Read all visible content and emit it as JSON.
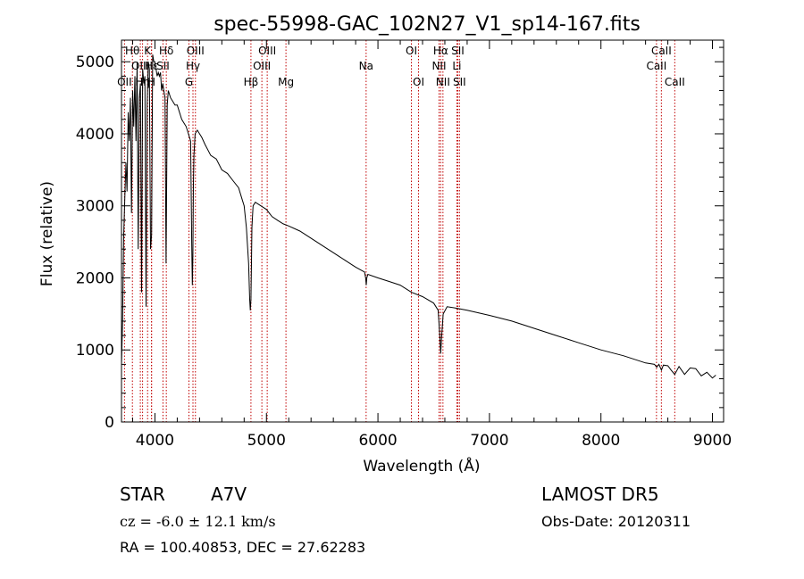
{
  "chart_data": {
    "type": "line",
    "title": "spec-55998-GAC_102N27_V1_sp14-167.fits",
    "xlabel": "Wavelength (Å)",
    "ylabel": "Flux (relative)",
    "xlim": [
      3700,
      9100
    ],
    "ylim": [
      0,
      5300
    ],
    "grid": false,
    "x_ticks": [
      4000,
      5000,
      6000,
      7000,
      8000,
      9000
    ],
    "y_ticks": [
      0,
      1000,
      2000,
      3000,
      4000,
      5000
    ],
    "line_color": "#000000",
    "marker_color": "#c00000",
    "series": [
      {
        "x": [
          3700,
          3710,
          3720,
          3730,
          3740,
          3750,
          3760,
          3770,
          3780,
          3790,
          3800,
          3810,
          3820,
          3830,
          3840,
          3850,
          3860,
          3870,
          3880,
          3890,
          3900,
          3910,
          3920,
          3930,
          3940,
          3950,
          3960,
          3970,
          3980,
          3990,
          4000,
          4010,
          4020,
          4030,
          4040,
          4050,
          4060,
          4070,
          4080,
          4090,
          4100,
          4110,
          4120,
          4140,
          4160,
          4180,
          4200,
          4220,
          4240,
          4260,
          4280,
          4300,
          4320,
          4330,
          4335,
          4340,
          4345,
          4350,
          4360,
          4380,
          4400,
          4420,
          4450,
          4500,
          4550,
          4600,
          4650,
          4700,
          4750,
          4780,
          4800,
          4820,
          4840,
          4850,
          4855,
          4861,
          4866,
          4870,
          4880,
          4900,
          4950,
          5000,
          5050,
          5100,
          5150,
          5200,
          5300,
          5400,
          5500,
          5600,
          5700,
          5800,
          5880,
          5890,
          5895,
          5900,
          5910,
          6000,
          6100,
          6200,
          6300,
          6400,
          6500,
          6540,
          6555,
          6563,
          6570,
          6585,
          6620,
          6700,
          6800,
          7000,
          7200,
          7400,
          7600,
          7800,
          8000,
          8200,
          8400,
          8480,
          8500,
          8520,
          8542,
          8560,
          8600,
          8630,
          8662,
          8700,
          8750,
          8800,
          8850,
          8900,
          8950,
          9000,
          9030
        ],
        "y": [
          800,
          1400,
          2600,
          3100,
          3600,
          3200,
          4300,
          3900,
          4500,
          2900,
          4600,
          4100,
          4800,
          3900,
          5000,
          2400,
          4500,
          4700,
          1800,
          4900,
          4700,
          4800,
          1600,
          4400,
          5000,
          4900,
          2400,
          2600,
          5100,
          5000,
          5000,
          4900,
          4800,
          4850,
          4800,
          4850,
          4600,
          4700,
          4600,
          4500,
          2200,
          4400,
          4600,
          4500,
          4450,
          4400,
          4400,
          4300,
          4200,
          4150,
          4100,
          4000,
          3900,
          2500,
          1900,
          2300,
          3300,
          3700,
          4000,
          4050,
          4000,
          3950,
          3850,
          3700,
          3650,
          3500,
          3450,
          3350,
          3250,
          3100,
          3000,
          2700,
          2200,
          1700,
          1550,
          1700,
          2200,
          2700,
          3000,
          3050,
          3000,
          2950,
          2850,
          2800,
          2750,
          2720,
          2650,
          2550,
          2450,
          2350,
          2250,
          2150,
          2080,
          2000,
          1900,
          2000,
          2050,
          2000,
          1950,
          1900,
          1800,
          1740,
          1650,
          1550,
          1200,
          950,
          1150,
          1500,
          1600,
          1580,
          1550,
          1480,
          1400,
          1300,
          1200,
          1100,
          1000,
          920,
          820,
          800,
          760,
          800,
          720,
          790,
          780,
          720,
          660,
          770,
          660,
          750,
          740,
          640,
          690,
          610,
          650
        ]
      }
    ],
    "lines": [
      {
        "label": "OII",
        "x": 3727,
        "row": 3
      },
      {
        "label": "Hθ",
        "x": 3798,
        "row": 1
      },
      {
        "label": "OIII",
        "x": 3869,
        "row": 2
      },
      {
        "label": "Hη",
        "x": 3889,
        "row": 3
      },
      {
        "label": "K",
        "x": 3934,
        "row": 1
      },
      {
        "label": "Hε",
        "x": 3970,
        "row": 2
      },
      {
        "label": "H",
        "x": 3969,
        "row": 3
      },
      {
        "label": "SII",
        "x": 4072,
        "row": 2
      },
      {
        "label": "Hδ",
        "x": 4102,
        "row": 1
      },
      {
        "label": "Hγ",
        "x": 4341,
        "row": 2
      },
      {
        "label": "G",
        "x": 4305,
        "row": 3
      },
      {
        "label": "OIII",
        "x": 4363,
        "row": 1
      },
      {
        "label": "Hβ",
        "x": 4861,
        "row": 3
      },
      {
        "label": "OIII",
        "x": 4959,
        "row": 2
      },
      {
        "label": "OIII",
        "x": 5007,
        "row": 1
      },
      {
        "label": "Mg",
        "x": 5175,
        "row": 3
      },
      {
        "label": "Na",
        "x": 5894,
        "row": 2
      },
      {
        "label": "OI",
        "x": 6300,
        "row": 1
      },
      {
        "label": "OI",
        "x": 6364,
        "row": 3
      },
      {
        "label": "NII",
        "x": 6548,
        "row": 2
      },
      {
        "label": "Hα",
        "x": 6563,
        "row": 1
      },
      {
        "label": "NII",
        "x": 6583,
        "row": 3
      },
      {
        "label": "Li",
        "x": 6708,
        "row": 2
      },
      {
        "label": "SII",
        "x": 6716,
        "row": 1
      },
      {
        "label": "SII",
        "x": 6731,
        "row": 3
      },
      {
        "label": "CaII",
        "x": 8498,
        "row": 2
      },
      {
        "label": "CaII",
        "x": 8542,
        "row": 1
      },
      {
        "label": "CaII",
        "x": 8662,
        "row": 3
      }
    ]
  },
  "footer": {
    "class_label": "STAR",
    "subclass": "A7V",
    "survey": "LAMOST DR5",
    "cz": "cz = -6.0 ± 12.1 km/s",
    "obs_date": "Obs-Date: 20120311",
    "coords": "RA = 100.40853, DEC =  27.62283"
  }
}
